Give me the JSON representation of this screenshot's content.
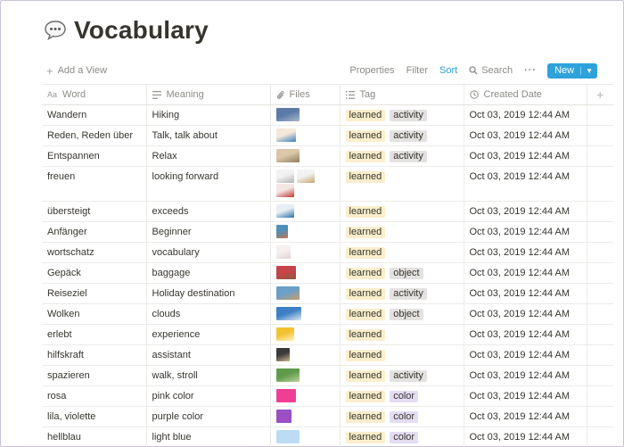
{
  "page": {
    "title": "Vocabulary",
    "icon": "speech-bubble-icon"
  },
  "toolbar": {
    "add_view": "Add a View",
    "properties": "Properties",
    "filter": "Filter",
    "sort": "Sort",
    "search": "Search",
    "more": "···",
    "new": "New"
  },
  "columns": [
    {
      "label": "Word",
      "icon": "text-icon"
    },
    {
      "label": "Meaning",
      "icon": "lines-icon"
    },
    {
      "label": "Files",
      "icon": "paperclip-icon"
    },
    {
      "label": "Tag",
      "icon": "list-icon"
    },
    {
      "label": "Created Date",
      "icon": "clock-icon"
    }
  ],
  "colors": {
    "learned_bg": "#fbeecc",
    "activity_bg": "#e3e2e0",
    "object_bg": "#e3e2e0",
    "color_bg": "#e4dcf3",
    "accent": "#2ea2db"
  },
  "rows": [
    {
      "word": "Wandern",
      "meaning": "Hiking",
      "thumbs": [
        {
          "c1": "#5b7aa8",
          "c2": "#a8b9c9",
          "w": 26
        }
      ],
      "tags": [
        "learned",
        "activity"
      ],
      "date": "Oct 03, 2019 12:44 AM"
    },
    {
      "word": "Reden, Reden über",
      "meaning": "Talk, talk about",
      "thumbs": [
        {
          "c1": "#f4e9d8",
          "c2": "#3b7dc4",
          "w": 22
        }
      ],
      "tags": [
        "learned",
        "activity"
      ],
      "date": "Oct 03, 2019 12:44 AM"
    },
    {
      "word": "Entspannen",
      "meaning": "Relax",
      "thumbs": [
        {
          "c1": "#d9c7a8",
          "c2": "#8e7a5a",
          "w": 26
        }
      ],
      "tags": [
        "learned",
        "activity"
      ],
      "date": "Oct 03, 2019 12:44 AM"
    },
    {
      "word": "freuen",
      "meaning": "looking forward",
      "thumbs": [
        {
          "c1": "#f2f2f2",
          "c2": "#b0b0b0",
          "w": 20
        },
        {
          "c1": "#f2f2f2",
          "c2": "#c4a86d",
          "w": 20
        },
        {
          "c1": "#f5e6e6",
          "c2": "#c0392b",
          "w": 20
        }
      ],
      "tags": [
        "learned"
      ],
      "date": "Oct 03, 2019 12:44 AM"
    },
    {
      "word": "übersteigt",
      "meaning": "exceeds",
      "thumbs": [
        {
          "c1": "#e8eef4",
          "c2": "#2a6fa8",
          "w": 20
        }
      ],
      "tags": [
        "learned"
      ],
      "date": "Oct 03, 2019 12:44 AM"
    },
    {
      "word": "Anfänger",
      "meaning": "Beginner",
      "thumbs": [
        {
          "c1": "#4f8fb8",
          "c2": "#c6744a",
          "w": 13
        }
      ],
      "tags": [
        "learned"
      ],
      "date": "Oct 03, 2019 12:44 AM"
    },
    {
      "word": "wortschatz",
      "meaning": "vocabulary",
      "thumbs": [
        {
          "c1": "#f6efef",
          "c2": "#e0d3d3",
          "w": 16
        }
      ],
      "tags": [
        "learned"
      ],
      "date": "Oct 03, 2019 12:44 AM"
    },
    {
      "word": "Gepäck",
      "meaning": "baggage",
      "thumbs": [
        {
          "c1": "#c9434a",
          "c2": "#8a5a3c",
          "w": 22
        }
      ],
      "tags": [
        "learned",
        "object"
      ],
      "date": "Oct 03, 2019 12:44 AM"
    },
    {
      "word": "Reiseziel",
      "meaning": "Holiday destination",
      "thumbs": [
        {
          "c1": "#6aa0c9",
          "c2": "#c99a6a",
          "w": 26
        }
      ],
      "tags": [
        "learned",
        "activity"
      ],
      "date": "Oct 03, 2019 12:44 AM"
    },
    {
      "word": "Wolken",
      "meaning": "clouds",
      "thumbs": [
        {
          "c1": "#3d7ec4",
          "c2": "#dfe9f3",
          "w": 28
        }
      ],
      "tags": [
        "learned",
        "object"
      ],
      "date": "Oct 03, 2019 12:44 AM"
    },
    {
      "word": "erlebt",
      "meaning": "experience",
      "thumbs": [
        {
          "c1": "#f2c230",
          "c2": "#fff3c2",
          "w": 20
        }
      ],
      "tags": [
        "learned"
      ],
      "date": "Oct 03, 2019 12:44 AM"
    },
    {
      "word": "hilfskraft",
      "meaning": "assistant",
      "thumbs": [
        {
          "c1": "#3a3a3a",
          "c2": "#c8b48a",
          "w": 15
        }
      ],
      "tags": [
        "learned"
      ],
      "date": "Oct 03, 2019 12:44 AM"
    },
    {
      "word": "spazieren",
      "meaning": "walk, stroll",
      "thumbs": [
        {
          "c1": "#5f9a4a",
          "c2": "#b9d39c",
          "w": 26
        }
      ],
      "tags": [
        "learned",
        "activity"
      ],
      "date": "Oct 03, 2019 12:44 AM"
    },
    {
      "word": "rosa",
      "meaning": "pink color",
      "thumbs": [
        {
          "c1": "#ef3f95",
          "c2": "#ef3f95",
          "w": 22
        }
      ],
      "tags": [
        "learned",
        "color"
      ],
      "date": "Oct 03, 2019 12:44 AM"
    },
    {
      "word": "lila, violette",
      "meaning": "purple color",
      "thumbs": [
        {
          "c1": "#9a4fc2",
          "c2": "#9a4fc2",
          "w": 17
        }
      ],
      "tags": [
        "learned",
        "color"
      ],
      "date": "Oct 03, 2019 12:44 AM"
    },
    {
      "word": "hellblau",
      "meaning": "light blue",
      "thumbs": [
        {
          "c1": "#bcdcf3",
          "c2": "#bcdcf3",
          "w": 26
        }
      ],
      "tags": [
        "learned",
        "color"
      ],
      "date": "Oct 03, 2019 12:44 AM"
    }
  ]
}
